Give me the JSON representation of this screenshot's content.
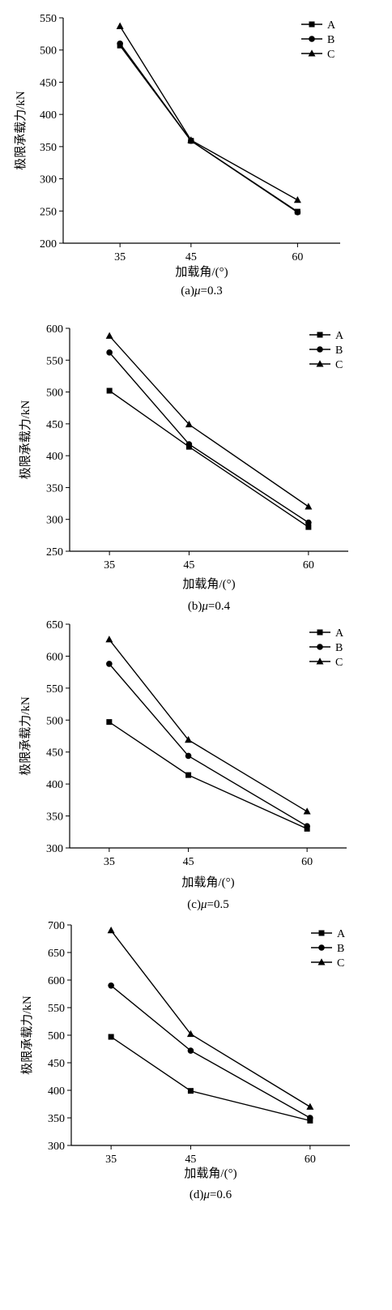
{
  "colors": {
    "line": "#000000",
    "background": "#ffffff"
  },
  "chart_data": [
    {
      "type": "line",
      "caption_prefix": "(a)",
      "caption_symbol": "μ",
      "caption_suffix": "=0.3",
      "xlabel": "加载角/(°)",
      "ylabel": "极限承载力/kN",
      "x": [
        35,
        45,
        60
      ],
      "xlim": [
        27,
        66
      ],
      "ylim": [
        200,
        550
      ],
      "yticks": [
        200,
        250,
        300,
        350,
        400,
        450,
        500,
        550
      ],
      "grid": false,
      "legend": "top-right",
      "series": [
        {
          "name": "A",
          "marker": "square",
          "values": [
            507,
            359,
            249
          ]
        },
        {
          "name": "B",
          "marker": "circle",
          "values": [
            510,
            359,
            248
          ]
        },
        {
          "name": "C",
          "marker": "triangle",
          "values": [
            537,
            360,
            267
          ]
        }
      ]
    },
    {
      "type": "line",
      "caption_prefix": "(b)",
      "caption_symbol": "μ",
      "caption_suffix": "=0.4",
      "xlabel": "加载角/(°)",
      "ylabel": "极限承载力/kN",
      "x": [
        35,
        45,
        60
      ],
      "xlim": [
        30,
        65
      ],
      "ylim": [
        250,
        600
      ],
      "yticks": [
        250,
        300,
        350,
        400,
        450,
        500,
        550,
        600
      ],
      "grid": false,
      "legend": "top-right",
      "series": [
        {
          "name": "A",
          "marker": "square",
          "values": [
            502,
            414,
            288
          ]
        },
        {
          "name": "B",
          "marker": "circle",
          "values": [
            562,
            418,
            295
          ]
        },
        {
          "name": "C",
          "marker": "triangle",
          "values": [
            588,
            449,
            320
          ]
        }
      ]
    },
    {
      "type": "line",
      "caption_prefix": "(c)",
      "caption_symbol": "μ",
      "caption_suffix": "=0.5",
      "xlabel": "加载角/(°)",
      "ylabel": "极限承载力/kN",
      "x": [
        35,
        45,
        60
      ],
      "xlim": [
        30,
        65
      ],
      "ylim": [
        300,
        650
      ],
      "yticks": [
        300,
        350,
        400,
        450,
        500,
        550,
        600,
        650
      ],
      "grid": false,
      "legend": "top-right",
      "series": [
        {
          "name": "A",
          "marker": "square",
          "values": [
            497,
            414,
            330
          ]
        },
        {
          "name": "B",
          "marker": "circle",
          "values": [
            588,
            444,
            334
          ]
        },
        {
          "name": "C",
          "marker": "triangle",
          "values": [
            626,
            469,
            357
          ]
        }
      ]
    },
    {
      "type": "line",
      "caption_prefix": "(d)",
      "caption_symbol": "μ",
      "caption_suffix": "=0.6",
      "xlabel": "加载角/(°)",
      "ylabel": "极限承载力/kN",
      "x": [
        35,
        45,
        60
      ],
      "xlim": [
        30,
        65
      ],
      "ylim": [
        300,
        700
      ],
      "yticks": [
        300,
        350,
        400,
        450,
        500,
        550,
        600,
        650,
        700
      ],
      "grid": false,
      "legend": "top-right",
      "series": [
        {
          "name": "A",
          "marker": "square",
          "values": [
            497,
            399,
            345
          ]
        },
        {
          "name": "B",
          "marker": "circle",
          "values": [
            590,
            472,
            350
          ]
        },
        {
          "name": "C",
          "marker": "triangle",
          "values": [
            690,
            502,
            370
          ]
        }
      ]
    }
  ]
}
